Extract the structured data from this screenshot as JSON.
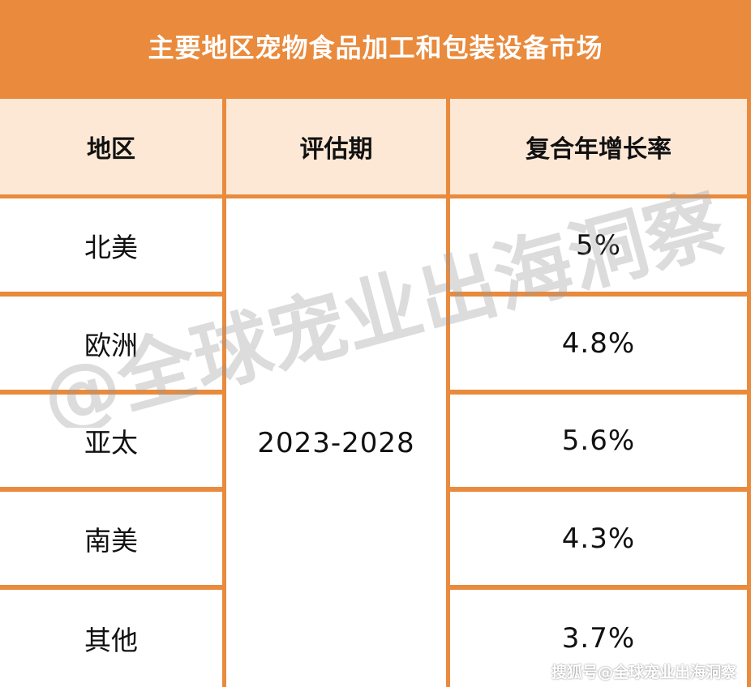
{
  "title": "主要地区宠物食品加工和包装设备市场",
  "table": {
    "headers": [
      "地区",
      "评估期",
      "复合年增长率"
    ],
    "period": "2023-2028",
    "rows": [
      {
        "region": "北美",
        "cagr": "5%"
      },
      {
        "region": "欧洲",
        "cagr": "4.8%"
      },
      {
        "region": "亚太",
        "cagr": "5.6%"
      },
      {
        "region": "南美",
        "cagr": "4.3%"
      },
      {
        "region": "其他",
        "cagr": "3.7%"
      }
    ]
  },
  "watermark": "@全球宠业出海洞察",
  "footer": "搜狐号@全球宠业出海洞察",
  "colors": {
    "frame": "#e98a3c",
    "header_bg": "#fde8d6",
    "body_bg": "#ffffff",
    "watermark": "#9a9a9a"
  }
}
